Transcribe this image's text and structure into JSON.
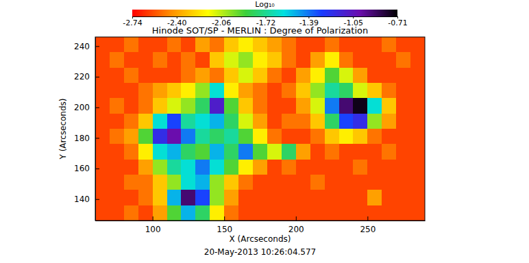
{
  "chart_data": {
    "type": "heatmap",
    "title": "Hinode SOT/SP - MERLIN : Degree of Polarization",
    "subtitle": "20-May-2013 10:26:04.577",
    "x_label": "X (Arcseconds)",
    "y_label": "Y (Arcseconds)",
    "xlim": [
      60,
      290
    ],
    "ylim": [
      126,
      246
    ],
    "xticks": [
      100,
      150,
      200,
      250
    ],
    "yticks": [
      140,
      160,
      180,
      200,
      220,
      240
    ],
    "x": [
      65,
      75,
      85,
      95,
      105,
      115,
      125,
      135,
      145,
      155,
      165,
      175,
      185,
      195,
      205,
      215,
      225,
      235,
      245,
      255,
      265,
      275,
      285
    ],
    "y": [
      241,
      231,
      221,
      211,
      201,
      191,
      181,
      171,
      161,
      151,
      141,
      131
    ],
    "values": [
      [
        -2.6,
        -2.6,
        -2.5,
        -2.6,
        -2.6,
        -2.5,
        -2.6,
        -2.4,
        -2.5,
        -2.3,
        -2.2,
        -2.3,
        -2.4,
        -2.5,
        -2.6,
        -2.6,
        -2.5,
        -2.6,
        -2.6,
        -2.6,
        -2.5,
        -2.6,
        -2.6
      ],
      [
        -2.6,
        -2.5,
        -2.6,
        -2.6,
        -2.5,
        -2.6,
        -2.5,
        -2.6,
        -2.3,
        -2.1,
        -2.0,
        -2.2,
        -2.3,
        -2.5,
        -2.6,
        -2.4,
        -2.2,
        -2.5,
        -2.6,
        -2.6,
        -2.6,
        -2.5,
        -2.6
      ],
      [
        -2.6,
        -2.6,
        -2.5,
        -2.6,
        -2.6,
        -2.6,
        -2.5,
        -2.4,
        -2.5,
        -2.3,
        -2.1,
        -2.3,
        -2.5,
        -2.6,
        -2.4,
        -2.2,
        -1.9,
        -2.1,
        -2.4,
        -2.6,
        -2.6,
        -2.6,
        -2.6
      ],
      [
        -2.6,
        -2.6,
        -2.6,
        -2.5,
        -2.4,
        -2.3,
        -2.2,
        -2.0,
        -1.6,
        -2.2,
        -2.4,
        -2.5,
        -2.6,
        -2.5,
        -2.3,
        -2.0,
        -1.7,
        -1.8,
        -2.1,
        -2.3,
        -2.5,
        -2.6,
        -2.6
      ],
      [
        -2.6,
        -2.5,
        -2.6,
        -2.5,
        -2.3,
        -2.1,
        -2.0,
        -1.8,
        -1.1,
        -1.9,
        -2.3,
        -2.5,
        -2.6,
        -2.6,
        -2.4,
        -2.1,
        -1.4,
        -0.9,
        -0.75,
        -1.6,
        -2.3,
        -2.6,
        -2.6
      ],
      [
        -2.6,
        -2.6,
        -2.5,
        -2.3,
        -1.6,
        -1.3,
        -1.7,
        -1.6,
        -1.5,
        -1.8,
        -2.1,
        -2.4,
        -2.6,
        -2.5,
        -2.5,
        -2.3,
        -1.8,
        -1.3,
        -1.2,
        -2.0,
        -2.4,
        -2.6,
        -2.6
      ],
      [
        -2.6,
        -2.5,
        -2.4,
        -1.9,
        -1.2,
        -1.0,
        -1.4,
        -1.7,
        -1.8,
        -1.7,
        -1.9,
        -2.2,
        -2.5,
        -2.6,
        -2.6,
        -2.5,
        -2.3,
        -2.2,
        -2.3,
        -2.5,
        -2.6,
        -2.6,
        -2.6
      ],
      [
        -2.6,
        -2.6,
        -2.5,
        -2.2,
        -1.6,
        -1.5,
        -1.8,
        -1.9,
        -1.5,
        -1.8,
        -1.4,
        -1.9,
        -2.1,
        -1.8,
        -2.4,
        -2.6,
        -2.5,
        -2.6,
        -2.6,
        -2.6,
        -2.5,
        -2.6,
        -2.6
      ],
      [
        -2.6,
        -2.6,
        -2.6,
        -2.4,
        -2.0,
        -1.7,
        -1.6,
        -1.4,
        -1.6,
        -1.9,
        -2.2,
        -2.4,
        -2.6,
        -2.5,
        -2.6,
        -2.6,
        -2.6,
        -2.6,
        -2.5,
        -2.6,
        -2.6,
        -2.6,
        -2.6
      ],
      [
        -2.6,
        -2.6,
        -2.5,
        -2.5,
        -2.3,
        -2.0,
        -1.6,
        -1.5,
        -2.0,
        -2.3,
        -2.5,
        -2.6,
        -2.6,
        -2.6,
        -2.6,
        -2.5,
        -2.6,
        -2.6,
        -2.6,
        -2.6,
        -2.6,
        -2.6,
        -2.6
      ],
      [
        -2.6,
        -2.6,
        -2.6,
        -2.5,
        -2.3,
        -1.5,
        -0.9,
        -1.3,
        -2.0,
        -2.4,
        -2.6,
        -2.6,
        -2.6,
        -2.6,
        -2.6,
        -2.6,
        -2.6,
        -2.6,
        -2.6,
        -2.4,
        -2.6,
        -2.6,
        -2.6
      ],
      [
        -2.6,
        -2.6,
        -2.5,
        -2.6,
        -2.4,
        -1.9,
        -1.5,
        -1.8,
        -2.2,
        -2.5,
        -2.6,
        -2.6,
        -2.6,
        -2.6,
        -2.6,
        -2.6,
        -2.6,
        -2.6,
        -2.6,
        -2.6,
        -2.6,
        -2.6,
        -2.6
      ]
    ],
    "colorbar": {
      "label": "Log₁₀",
      "range": [
        -2.74,
        -0.71
      ],
      "ticks": [
        -2.74,
        {
          "value": -2.4,
          "label": "-2.40"
        },
        -2.06,
        -1.72,
        -1.39,
        -1.05,
        -0.71
      ]
    }
  }
}
